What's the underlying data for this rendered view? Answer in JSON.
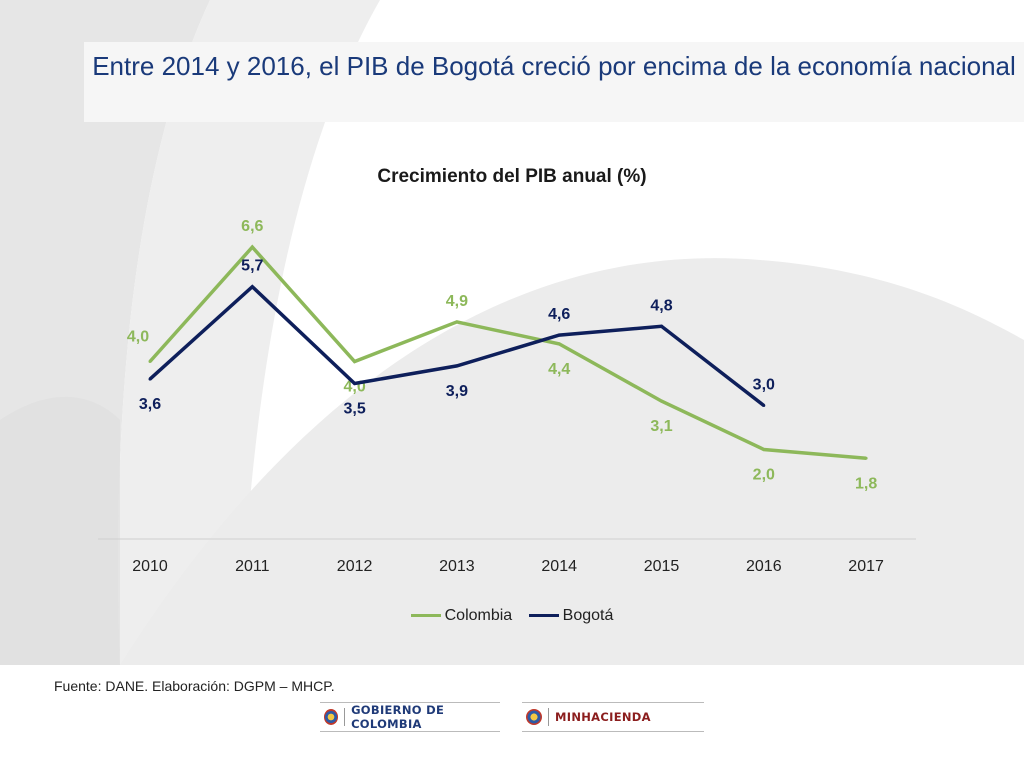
{
  "slide": {
    "title": "Entre 2014 y 2016, el PIB de Bogotá creció por encima de la economía nacional",
    "source": "Fuente: DANE. Elaboración: DGPM – MHCP.",
    "logos": {
      "gobierno": "GOBIERNO DE COLOMBIA",
      "minhacienda": "MINHACIENDA"
    }
  },
  "colors": {
    "colombia": "#8db85a",
    "bogota": "#0e1f5b",
    "title": "#1a3a7a"
  },
  "chart_data": {
    "type": "line",
    "title": "Crecimiento del PIB anual (%)",
    "categories": [
      "2010",
      "2011",
      "2012",
      "2013",
      "2014",
      "2015",
      "2016",
      "2017"
    ],
    "series": [
      {
        "name": "Colombia",
        "values": [
          4.0,
          6.6,
          4.0,
          4.9,
          4.4,
          3.1,
          2.0,
          1.8
        ],
        "labels": [
          "4,0",
          "6,6",
          "4,0",
          "4,9",
          "4,4",
          "3,1",
          "2,0",
          "1,8"
        ]
      },
      {
        "name": "Bogotá",
        "values": [
          3.6,
          5.7,
          3.5,
          3.9,
          4.6,
          4.8,
          3.0,
          null
        ],
        "labels": [
          "3,6",
          "5,7",
          "3,5",
          "3,9",
          "4,6",
          "4,8",
          "3,0",
          null
        ]
      }
    ],
    "ylim": [
      0,
      8
    ],
    "grid": false,
    "legend": "bottom"
  }
}
